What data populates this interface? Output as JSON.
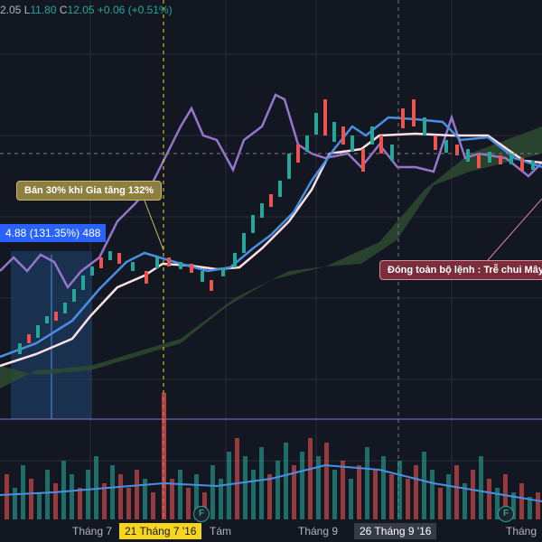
{
  "ohlc": {
    "prefix": "2.05",
    "l_label": "L",
    "l_value": "11.80",
    "c_label": "C",
    "c_value": "12.05",
    "change": "+0.06 (+0.51%)"
  },
  "labels": {
    "sell": "Bán 30% khi Gia tăng 132%",
    "close_all": "Đóng toàn bộ lệnh : Trễ chui Mây",
    "measure": "4.88 (131.35%) 488"
  },
  "xaxis": {
    "jul": "Tháng 7",
    "aug": "Tám",
    "sep": "Tháng 9",
    "last": "Tháng"
  },
  "crosshair_dates": {
    "first": "21 Tháng 7 '16",
    "second": "26 Tháng 9 '16"
  },
  "earnings_badges": [
    "F",
    "F"
  ],
  "colors": {
    "up": "#26a69a",
    "down": "#ef5350",
    "kijun": "#ffe0e6",
    "tenkan": "#4a90e2",
    "chikou": "#9575cd",
    "cloud": "#2e4a30",
    "background": "#131722"
  },
  "chart_data": {
    "type": "candlestick",
    "series": [
      {
        "name": "price_close",
        "values": [
          6.0,
          6.1,
          6.2,
          6.4,
          6.3,
          6.6,
          6.9,
          7.2,
          7.5,
          7.9,
          8.1,
          8.3,
          8.2,
          8.1,
          8.0,
          8.2,
          8.4,
          8.5,
          8.3,
          8.1,
          8.2,
          8.0,
          7.8,
          7.9,
          8.3,
          8.9,
          9.5,
          10.0,
          10.3,
          10.6,
          10.8,
          11.2,
          11.9,
          12.4,
          12.8,
          12.6,
          12.4,
          12.8,
          12.7,
          12.3,
          12.1,
          12.7,
          13.0,
          12.8,
          12.3,
          12.5,
          12.1,
          12.6,
          12.4,
          12.2,
          12.3,
          12.0,
          12.05
        ]
      },
      {
        "name": "volume",
        "values": [
          3,
          4,
          2,
          5,
          3,
          6,
          4,
          5,
          3,
          4,
          2,
          3,
          4,
          5,
          3,
          9,
          4,
          3,
          6,
          5,
          4,
          3,
          2,
          5,
          6,
          4,
          7,
          5,
          6,
          5,
          8,
          6,
          5,
          4,
          6,
          7,
          5,
          4,
          6,
          5,
          4,
          6,
          5,
          3,
          4,
          5,
          6,
          4,
          3,
          5,
          4,
          6,
          5
        ]
      }
    ]
  }
}
